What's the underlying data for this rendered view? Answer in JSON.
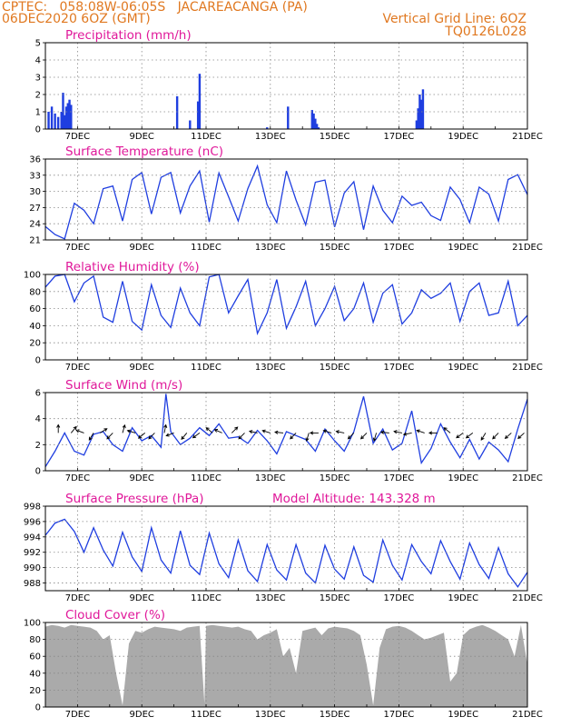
{
  "header": {
    "line1_left": "CPTEC:   058:08W-06:05S   JACAREACANGA (PA)",
    "line2_left": "06DEC2020 6OZ (GMT)",
    "line2_right": "Vertical Grid Line: 6OZ",
    "line3_right": "TQ0126L028"
  },
  "x_axis": {
    "start_day": 6,
    "end_day": 21,
    "tick_labels": [
      "7DEC",
      "9DEC",
      "11DEC",
      "13DEC",
      "15DEC",
      "17DEC",
      "19DEC",
      "21DEC"
    ],
    "tick_days": [
      7,
      9,
      11,
      13,
      15,
      17,
      19,
      21
    ]
  },
  "colors": {
    "title": "#e0189a",
    "header": "#e07820",
    "line": "#1f3ee0",
    "cloud": "#aaaaaa"
  },
  "chart_data": [
    {
      "type": "bar",
      "title": "Precipitation (mm/h)",
      "ylim": [
        0,
        5
      ],
      "yticks": [
        0,
        1,
        2,
        3,
        4,
        5
      ],
      "x": [
        6.1,
        6.2,
        6.3,
        6.4,
        6.5,
        6.55,
        6.6,
        6.65,
        6.7,
        6.75,
        6.8,
        10.1,
        10.5,
        10.75,
        10.8,
        12.9,
        13.55,
        14.3,
        14.35,
        14.4,
        14.45,
        14.5,
        17.55,
        17.6,
        17.65,
        17.7,
        17.75
      ],
      "values": [
        1.0,
        1.3,
        0.9,
        0.7,
        1.0,
        2.1,
        0.8,
        1.3,
        1.5,
        1.7,
        1.4,
        1.9,
        0.5,
        1.6,
        3.2,
        0.1,
        1.3,
        1.1,
        0.9,
        0.6,
        0.3,
        0.1,
        0.5,
        1.2,
        2.0,
        1.7,
        2.3
      ]
    },
    {
      "type": "line",
      "title": "Surface Temperature (nC)",
      "ylim": [
        21,
        36
      ],
      "yticks": [
        21,
        24,
        27,
        30,
        33,
        36
      ],
      "x": [
        6.0,
        6.3,
        6.6,
        6.9,
        7.2,
        7.5,
        7.8,
        8.1,
        8.4,
        8.7,
        9.0,
        9.3,
        9.6,
        9.9,
        10.2,
        10.5,
        10.8,
        11.1,
        11.4,
        11.7,
        12.0,
        12.3,
        12.6,
        12.9,
        13.2,
        13.5,
        13.8,
        14.1,
        14.4,
        14.7,
        15.0,
        15.3,
        15.6,
        15.9,
        16.2,
        16.5,
        16.8,
        17.1,
        17.4,
        17.7,
        18.0,
        18.3,
        18.6,
        18.9,
        19.2,
        19.5,
        19.8,
        20.1,
        20.4,
        20.7,
        21.0
      ],
      "values": [
        23.5,
        22.0,
        21.2,
        27.8,
        26.5,
        24.0,
        30.5,
        31.0,
        24.5,
        32.2,
        33.5,
        25.8,
        32.6,
        33.5,
        26.0,
        31.0,
        33.8,
        24.3,
        33.4,
        29.0,
        24.5,
        30.5,
        34.7,
        27.5,
        24.2,
        33.8,
        28.4,
        23.8,
        31.7,
        32.1,
        23.4,
        29.7,
        31.8,
        22.9,
        31.0,
        26.5,
        24.2,
        29.1,
        27.4,
        28.0,
        25.5,
        24.6,
        30.8,
        28.5,
        24.2,
        30.8,
        29.5,
        24.5,
        32.2,
        33.1,
        29.4
      ]
    },
    {
      "type": "line",
      "title": "Relative Humidity (%)",
      "ylim": [
        0,
        100
      ],
      "yticks": [
        0,
        20,
        40,
        60,
        80,
        100
      ],
      "x": [
        6.0,
        6.3,
        6.6,
        6.9,
        7.2,
        7.5,
        7.8,
        8.1,
        8.4,
        8.7,
        9.0,
        9.3,
        9.6,
        9.9,
        10.2,
        10.5,
        10.8,
        11.1,
        11.4,
        11.7,
        12.0,
        12.3,
        12.6,
        12.9,
        13.2,
        13.5,
        13.8,
        14.1,
        14.4,
        14.7,
        15.0,
        15.3,
        15.6,
        15.9,
        16.2,
        16.5,
        16.8,
        17.1,
        17.4,
        17.7,
        18.0,
        18.3,
        18.6,
        18.9,
        19.2,
        19.5,
        19.8,
        20.1,
        20.4,
        20.7,
        21.0
      ],
      "values": [
        85,
        98,
        100,
        68,
        90,
        98,
        50,
        44,
        92,
        45,
        35,
        88,
        52,
        38,
        84,
        55,
        40,
        97,
        100,
        55,
        75,
        94,
        31,
        55,
        94,
        37,
        62,
        92,
        40,
        60,
        86,
        46,
        60,
        90,
        44,
        78,
        88,
        42,
        55,
        82,
        72,
        78,
        90,
        45,
        80,
        90,
        52,
        55,
        92,
        40,
        52
      ]
    },
    {
      "type": "line",
      "title": "Surface Wind (m/s)",
      "ylim": [
        0,
        6
      ],
      "yticks": [
        0,
        2,
        4,
        6
      ],
      "x": [
        6.0,
        6.3,
        6.6,
        6.9,
        7.2,
        7.5,
        7.8,
        8.1,
        8.4,
        8.7,
        9.0,
        9.3,
        9.6,
        9.75,
        9.9,
        10.2,
        10.5,
        10.8,
        11.1,
        11.4,
        11.7,
        12.0,
        12.3,
        12.6,
        12.9,
        13.2,
        13.5,
        13.8,
        14.1,
        14.4,
        14.7,
        15.0,
        15.3,
        15.6,
        15.9,
        16.2,
        16.5,
        16.8,
        17.1,
        17.4,
        17.7,
        18.0,
        18.3,
        18.6,
        18.9,
        19.2,
        19.5,
        19.8,
        20.1,
        20.4,
        20.7,
        21.0
      ],
      "values": [
        0.3,
        1.5,
        2.9,
        1.5,
        1.2,
        2.8,
        3.0,
        2.0,
        1.5,
        3.3,
        2.3,
        2.7,
        1.8,
        5.9,
        3.0,
        2.0,
        2.5,
        3.3,
        2.7,
        3.6,
        2.5,
        2.6,
        2.1,
        3.1,
        2.3,
        1.3,
        3.0,
        2.7,
        2.4,
        1.5,
        3.2,
        2.3,
        1.5,
        3.0,
        5.7,
        2.1,
        3.2,
        1.6,
        2.1,
        4.6,
        0.6,
        1.7,
        3.6,
        2.2,
        1.0,
        2.4,
        0.9,
        2.2,
        1.6,
        0.7,
        3.2,
        5.5
      ],
      "vectors": [
        {
          "x": 6.4,
          "u": 0,
          "v": 1
        },
        {
          "x": 6.8,
          "u": 0.5,
          "v": 0.6
        },
        {
          "x": 7.2,
          "u": -0.8,
          "v": 0.3
        },
        {
          "x": 7.5,
          "u": -0.5,
          "v": -0.8
        },
        {
          "x": 7.7,
          "u": 0.8,
          "v": 0.5
        },
        {
          "x": 8.1,
          "u": -0.7,
          "v": -0.7
        },
        {
          "x": 8.4,
          "u": 0.3,
          "v": 1
        },
        {
          "x": 8.8,
          "u": -1,
          "v": 0.3
        },
        {
          "x": 9.1,
          "u": -1,
          "v": -0.8
        },
        {
          "x": 9.4,
          "u": -0.7,
          "v": -0.7
        },
        {
          "x": 9.7,
          "u": 0.2,
          "v": 1
        },
        {
          "x": 10.0,
          "u": -0.8,
          "v": -0.3
        },
        {
          "x": 10.4,
          "u": -0.5,
          "v": -0.6
        },
        {
          "x": 10.8,
          "u": -0.7,
          "v": -0.5
        },
        {
          "x": 11.2,
          "u": -0.6,
          "v": 0.5
        },
        {
          "x": 11.5,
          "u": -0.9,
          "v": 0.4
        },
        {
          "x": 11.8,
          "u": 0.5,
          "v": 0.5
        },
        {
          "x": 12.2,
          "u": -0.6,
          "v": -0.6
        },
        {
          "x": 12.6,
          "u": -0.9,
          "v": 0.2
        },
        {
          "x": 13.0,
          "u": -1,
          "v": 0.3
        },
        {
          "x": 13.4,
          "u": -1,
          "v": 0.1
        },
        {
          "x": 13.8,
          "u": -0.7,
          "v": -0.7
        },
        {
          "x": 14.2,
          "u": -0.3,
          "v": -1
        },
        {
          "x": 14.5,
          "u": -1,
          "v": 0
        },
        {
          "x": 14.9,
          "u": -1,
          "v": 0.3
        },
        {
          "x": 15.3,
          "u": -1,
          "v": 0.2
        },
        {
          "x": 15.6,
          "u": -0.6,
          "v": -0.6
        },
        {
          "x": 16.0,
          "u": -0.7,
          "v": -0.7
        },
        {
          "x": 16.3,
          "u": -0.3,
          "v": -1
        },
        {
          "x": 16.7,
          "u": -1,
          "v": 0.1
        },
        {
          "x": 17.1,
          "u": -1,
          "v": 0.2
        },
        {
          "x": 17.4,
          "u": -1,
          "v": -0.2
        },
        {
          "x": 17.8,
          "u": -0.9,
          "v": 0.3
        },
        {
          "x": 18.2,
          "u": -1,
          "v": 0
        },
        {
          "x": 18.6,
          "u": -0.6,
          "v": 0.5
        },
        {
          "x": 19.0,
          "u": -0.7,
          "v": -0.5
        },
        {
          "x": 19.3,
          "u": -0.8,
          "v": -0.6
        },
        {
          "x": 19.7,
          "u": -0.5,
          "v": -0.8
        },
        {
          "x": 20.1,
          "u": -0.7,
          "v": -0.7
        },
        {
          "x": 20.5,
          "u": -0.8,
          "v": -0.7
        },
        {
          "x": 20.9,
          "u": -1,
          "v": -0.9
        }
      ]
    },
    {
      "type": "line",
      "title": "Surface Pressure (hPa)",
      "subtitle": "Model Altitude: 143.328 m",
      "ylim": [
        987,
        998
      ],
      "yticks": [
        988,
        990,
        992,
        994,
        996,
        998
      ],
      "x": [
        6.0,
        6.3,
        6.6,
        6.9,
        7.2,
        7.5,
        7.8,
        8.1,
        8.4,
        8.7,
        9.0,
        9.3,
        9.6,
        9.9,
        10.2,
        10.5,
        10.8,
        11.1,
        11.4,
        11.7,
        12.0,
        12.3,
        12.6,
        12.9,
        13.2,
        13.5,
        13.8,
        14.1,
        14.4,
        14.7,
        15.0,
        15.3,
        15.6,
        15.9,
        16.2,
        16.5,
        16.8,
        17.1,
        17.4,
        17.7,
        18.0,
        18.3,
        18.6,
        18.9,
        19.2,
        19.5,
        19.8,
        20.1,
        20.4,
        20.7,
        21.0
      ],
      "values": [
        994.2,
        995.8,
        996.3,
        994.7,
        992.0,
        995.2,
        992.3,
        990.2,
        994.6,
        991.4,
        989.5,
        995.2,
        991.0,
        989.3,
        994.8,
        990.3,
        989.1,
        994.5,
        990.5,
        988.7,
        993.6,
        989.6,
        988.2,
        993.0,
        989.7,
        988.4,
        993.0,
        989.3,
        988.0,
        992.9,
        989.8,
        988.5,
        992.7,
        989.0,
        988.1,
        993.6,
        990.3,
        988.4,
        993.0,
        990.8,
        989.2,
        993.5,
        990.8,
        988.5,
        993.2,
        990.4,
        988.6,
        992.6,
        989.2,
        987.5,
        989.4
      ]
    },
    {
      "type": "area",
      "title": "Cloud Cover (%)",
      "ylim": [
        0,
        100
      ],
      "yticks": [
        0,
        20,
        40,
        60,
        80,
        100
      ],
      "x": [
        6.0,
        6.2,
        6.4,
        6.6,
        6.8,
        7.0,
        7.2,
        7.4,
        7.6,
        7.8,
        8.0,
        8.2,
        8.4,
        8.6,
        8.8,
        9.0,
        9.2,
        9.4,
        9.6,
        9.8,
        10.0,
        10.2,
        10.4,
        10.6,
        10.8,
        10.95,
        11.0,
        11.2,
        11.4,
        11.6,
        11.8,
        12.0,
        12.2,
        12.4,
        12.6,
        12.8,
        13.0,
        13.2,
        13.4,
        13.6,
        13.8,
        14.0,
        14.2,
        14.4,
        14.6,
        14.8,
        15.0,
        15.2,
        15.4,
        15.6,
        15.8,
        16.0,
        16.2,
        16.4,
        16.6,
        16.8,
        17.0,
        17.2,
        17.4,
        17.6,
        17.8,
        18.0,
        18.2,
        18.4,
        18.6,
        18.8,
        19.0,
        19.2,
        19.4,
        19.6,
        19.8,
        20.0,
        20.2,
        20.4,
        20.6,
        20.8,
        21.0
      ],
      "values": [
        95,
        97,
        96,
        94,
        97,
        96,
        95,
        94,
        90,
        80,
        85,
        40,
        2,
        75,
        90,
        88,
        92,
        95,
        94,
        93,
        92,
        90,
        94,
        95,
        96,
        4,
        96,
        97,
        96,
        95,
        94,
        95,
        92,
        90,
        80,
        85,
        88,
        92,
        60,
        70,
        40,
        90,
        92,
        94,
        85,
        93,
        95,
        94,
        93,
        90,
        85,
        50,
        2,
        70,
        92,
        95,
        96,
        94,
        90,
        85,
        80,
        82,
        85,
        88,
        30,
        40,
        85,
        92,
        95,
        97,
        94,
        90,
        85,
        80,
        60,
        97,
        50
      ]
    }
  ]
}
